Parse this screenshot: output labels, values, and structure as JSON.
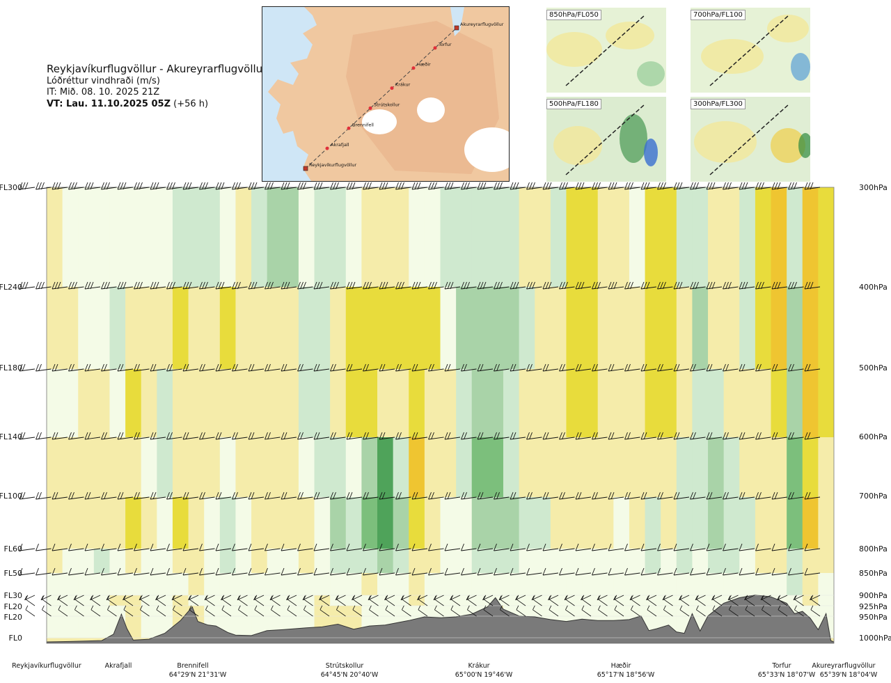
{
  "header": {
    "route": "Reykjavíkurflugvöllur - Akureyrarflugvöllur",
    "variable": "Lóðréttur vindhraði (m/s)",
    "issue_time": "IT: Mið. 08. 10. 2025 21Z",
    "valid_time": "VT: Lau. 11.10.2025 05Z",
    "valid_offset": "(+56 h)"
  },
  "route_map": {
    "points": [
      "Akureyrarflugvöllur",
      "Torfur",
      "Hæðir",
      "Krákur",
      "Strútskollur",
      "Brennifell",
      "Akrafjall",
      "Reykjavíkurflugvöllur"
    ]
  },
  "mini_maps": [
    {
      "label": "850hPa/FL050"
    },
    {
      "label": "700hPa/FL100"
    },
    {
      "label": "500hPa/FL180"
    },
    {
      "label": "300hPa/FL300"
    }
  ],
  "chart_data": {
    "type": "heatmap",
    "title": "Lóðréttur vindhraði (m/s)",
    "x_range": [
      0,
      100
    ],
    "flight_levels": [
      {
        "fl": "FL300",
        "hpa": "300hPa"
      },
      {
        "fl": "FL240",
        "hpa": "400hPa"
      },
      {
        "fl": "FL180",
        "hpa": "500hPa"
      },
      {
        "fl": "FL140",
        "hpa": "600hPa"
      },
      {
        "fl": "FL100",
        "hpa": "700hPa"
      },
      {
        "fl": "FL60",
        "hpa": "800hPa"
      },
      {
        "fl": "FL50",
        "hpa": "850hPa"
      },
      {
        "fl": "FL30",
        "hpa": "900hPa"
      },
      {
        "fl": "FL20",
        "hpa": "925hPa"
      },
      {
        "fl": "FL20",
        "hpa": "950hPa"
      },
      {
        "fl": "FL0",
        "hpa": "1000hPa"
      }
    ],
    "locations": [
      {
        "name": "Reykjavíkurflugvöllur",
        "coord": "",
        "x": 0
      },
      {
        "name": "Akrafjall",
        "coord": "",
        "x": 9.3
      },
      {
        "name": "Brennifell",
        "coord": "64°29'N 21°31'W",
        "x": 18.7
      },
      {
        "name": "Strútskollur",
        "coord": "64°45'N 20°40'W",
        "x": 38.3
      },
      {
        "name": "Krákur",
        "coord": "65°00'N 19°46'W",
        "x": 57.2
      },
      {
        "name": "Hæðir",
        "coord": "65°17'N 18°56'W",
        "x": 75.4
      },
      {
        "name": "Torfur",
        "coord": "65°33'N 18°07'W",
        "x": 95.4
      },
      {
        "name": "Akureyrarflugvöllur",
        "coord": "65°39'N 18°04'W",
        "x": 100
      }
    ],
    "columns": [
      {
        "x": 1,
        "v": [
          0.2,
          0.3,
          0.1,
          0.4,
          0.2,
          0.2,
          0.1,
          0.1,
          0.1,
          0.1
        ]
      },
      {
        "x": 3,
        "v": [
          0.1,
          0.2,
          0.1,
          0.3,
          0.2,
          0.1,
          0.1,
          0.1,
          0.1,
          0.1
        ]
      },
      {
        "x": 5,
        "v": [
          0.1,
          0.1,
          0.2,
          0.3,
          0.3,
          -0.1,
          0.1,
          0.1,
          0.1,
          0.1
        ]
      },
      {
        "x": 7,
        "v": [
          0.1,
          -0.1,
          0.2,
          0.2,
          0.3,
          -0.2,
          0.1,
          0.1,
          0.1,
          0.1
        ]
      },
      {
        "x": 9,
        "v": [
          -0.1,
          -0.3,
          0.1,
          0.2,
          0.4,
          -0.1,
          0.1,
          0.2,
          0.1,
          0.1
        ]
      },
      {
        "x": 11,
        "v": [
          0.1,
          0.2,
          0.7,
          0.4,
          0.8,
          0.3,
          0.1,
          0.2,
          0.2,
          0.2
        ]
      },
      {
        "x": 13,
        "v": [
          0.1,
          0.3,
          0.3,
          -0.1,
          0.2,
          0.1,
          0.1,
          0.1,
          0.1,
          0.1
        ]
      },
      {
        "x": 15,
        "v": [
          0.1,
          0.2,
          -0.2,
          -0.3,
          -0.1,
          -0.1,
          0.1,
          -0.1,
          0.1,
          0.1
        ]
      },
      {
        "x": 17,
        "v": [
          -0.2,
          0.7,
          0.4,
          0.2,
          0.8,
          0.6,
          0.1,
          0.2,
          0.3,
          0.3
        ]
      },
      {
        "x": 19,
        "v": [
          -0.3,
          0.4,
          0.3,
          0.5,
          0.4,
          0.4,
          0.2,
          0.1,
          0.2,
          0.2
        ]
      },
      {
        "x": 21,
        "v": [
          -0.3,
          0.2,
          0.2,
          0.3,
          0.1,
          0.1,
          0.1,
          0.1,
          0.1,
          0.1
        ]
      },
      {
        "x": 23,
        "v": [
          0.1,
          0.8,
          0.2,
          -0.1,
          -0.3,
          -0.2,
          0.1,
          -0.1,
          0.1,
          0.1
        ]
      },
      {
        "x": 25,
        "v": [
          0.2,
          0.5,
          0.3,
          0.3,
          0.1,
          0.1,
          0.1,
          0.1,
          0.1,
          0.1
        ]
      },
      {
        "x": 27,
        "v": [
          -0.2,
          0.3,
          0.4,
          0.4,
          0.3,
          0.2,
          0.1,
          0.1,
          0.1,
          0.1
        ]
      },
      {
        "x": 29,
        "v": [
          -0.4,
          0.2,
          0.3,
          0.3,
          0.2,
          0.1,
          0.1,
          0.1,
          0.1,
          0.1
        ]
      },
      {
        "x": 31,
        "v": [
          -0.5,
          0.3,
          0.2,
          0.2,
          0.2,
          0.1,
          0.1,
          0.1,
          0.1,
          0.1
        ]
      },
      {
        "x": 33,
        "v": [
          -0.1,
          -0.2,
          -0.2,
          0.1,
          0.3,
          0.2,
          0.1,
          0.1,
          0.1,
          0.1
        ]
      },
      {
        "x": 35,
        "v": [
          -0.2,
          -0.3,
          -0.3,
          -0.2,
          -0.1,
          0.1,
          0.1,
          0.2,
          0.2,
          0.2
        ]
      },
      {
        "x": 37,
        "v": [
          -0.2,
          0.6,
          0.4,
          -0.2,
          -0.4,
          -0.2,
          0.1,
          0.1,
          0.2,
          0.2
        ]
      },
      {
        "x": 39,
        "v": [
          -0.1,
          0.9,
          0.8,
          -0.1,
          -0.3,
          -0.2,
          0.1,
          0.1,
          0.2,
          0.2
        ]
      },
      {
        "x": 41,
        "v": [
          0.2,
          0.8,
          0.7,
          -0.5,
          -0.6,
          -0.3,
          0.2,
          0.1,
          0.1,
          0.1
        ]
      },
      {
        "x": 43,
        "v": [
          0.3,
          0.9,
          0.6,
          -1.0,
          -1.0,
          -0.4,
          -0.1,
          -0.1,
          0.1,
          0.1
        ]
      },
      {
        "x": 45,
        "v": [
          0.2,
          0.8,
          0.6,
          -0.3,
          -0.4,
          -0.2,
          0.1,
          0.1,
          0.1,
          0.1
        ]
      },
      {
        "x": 47,
        "v": [
          0.1,
          0.9,
          1.0,
          1.2,
          0.7,
          0.3,
          0.2,
          0.2,
          0.1,
          0.1
        ]
      },
      {
        "x": 49,
        "v": [
          -0.1,
          0.8,
          0.5,
          0.5,
          0.4,
          0.2,
          0.1,
          0.1,
          0.1,
          0.1
        ]
      },
      {
        "x": 51,
        "v": [
          -0.2,
          -0.1,
          0.3,
          0.3,
          -0.1,
          -0.1,
          0.1,
          0.1,
          0.1,
          0.1
        ]
      },
      {
        "x": 53,
        "v": [
          -0.3,
          -0.4,
          -0.3,
          -0.2,
          -0.1,
          -0.1,
          0.1,
          -0.1,
          0.1,
          0.1
        ]
      },
      {
        "x": 55,
        "v": [
          -0.3,
          -0.5,
          -0.5,
          -0.6,
          -0.4,
          -0.2,
          0.1,
          -0.1,
          0.1,
          0.1
        ]
      },
      {
        "x": 57,
        "v": [
          -0.3,
          -0.5,
          -0.4,
          -0.6,
          -0.5,
          -0.2,
          0.1,
          0.1,
          0.2,
          0.2
        ]
      },
      {
        "x": 59,
        "v": [
          -0.2,
          -0.4,
          -0.3,
          -0.3,
          -0.4,
          -0.2,
          0.1,
          0.1,
          0.1,
          0.1
        ]
      },
      {
        "x": 61,
        "v": [
          0.2,
          -0.2,
          0.2,
          0.2,
          -0.3,
          -0.1,
          0.1,
          0.1,
          0.1,
          0.1
        ]
      },
      {
        "x": 63,
        "v": [
          0.3,
          0.2,
          0.4,
          0.3,
          -0.2,
          -0.1,
          0.1,
          0.1,
          0.1,
          0.1
        ]
      },
      {
        "x": 65,
        "v": [
          -0.2,
          0.3,
          0.4,
          0.3,
          0.2,
          0.1,
          0.1,
          0.1,
          0.1,
          0.1
        ]
      },
      {
        "x": 67,
        "v": [
          0.7,
          0.8,
          0.8,
          0.4,
          0.3,
          -0.1,
          0.1,
          -0.1,
          0.1,
          0.1
        ]
      },
      {
        "x": 69,
        "v": [
          0.8,
          0.9,
          0.9,
          0.4,
          0.3,
          0.1,
          0.1,
          0.1,
          0.1,
          0.1
        ]
      },
      {
        "x": 71,
        "v": [
          0.3,
          0.4,
          0.5,
          0.3,
          0.3,
          -0.1,
          0.1,
          0.1,
          0.1,
          0.1
        ]
      },
      {
        "x": 73,
        "v": [
          0.2,
          0.3,
          0.3,
          0.2,
          0.1,
          0.1,
          0.1,
          0.1,
          0.1,
          0.1
        ]
      },
      {
        "x": 75,
        "v": [
          0.1,
          0.2,
          0.4,
          0.3,
          0.2,
          0.1,
          0.1,
          0.1,
          0.1,
          0.1
        ]
      },
      {
        "x": 77,
        "v": [
          0.9,
          1.0,
          0.8,
          0.3,
          -0.2,
          -0.2,
          0.1,
          0.1,
          0.1,
          0.1
        ]
      },
      {
        "x": 79,
        "v": [
          0.8,
          0.9,
          0.7,
          0.4,
          0.3,
          0.1,
          0.1,
          0.1,
          0.1,
          0.1
        ]
      },
      {
        "x": 81,
        "v": [
          -0.2,
          0.2,
          0.2,
          -0.2,
          -0.3,
          -0.2,
          0.1,
          0.1,
          0.1,
          0.1
        ]
      },
      {
        "x": 83,
        "v": [
          -0.3,
          -0.4,
          -0.3,
          -0.2,
          -0.2,
          -0.1,
          0.1,
          0.1,
          0.1,
          0.1
        ]
      },
      {
        "x": 85,
        "v": [
          0.2,
          0.3,
          -0.3,
          -0.5,
          -0.5,
          -0.3,
          -0.1,
          -0.1,
          0.1,
          0.1
        ]
      },
      {
        "x": 87,
        "v": [
          0.3,
          0.3,
          0.3,
          -0.2,
          -0.3,
          -0.2,
          0.1,
          0.1,
          0.1,
          0.1
        ]
      },
      {
        "x": 89,
        "v": [
          -0.2,
          -0.2,
          0.2,
          0.2,
          -0.2,
          -0.1,
          0.1,
          0.1,
          0.1,
          0.1
        ]
      },
      {
        "x": 91,
        "v": [
          1.0,
          0.9,
          0.5,
          0.3,
          0.3,
          0.2,
          0.1,
          0.1,
          0.1,
          0.1
        ]
      },
      {
        "x": 93,
        "v": [
          1.3,
          1.2,
          0.8,
          0.5,
          0.3,
          0.2,
          0.1,
          0.1,
          0.1,
          0.1
        ]
      },
      {
        "x": 95,
        "v": [
          -0.3,
          -0.4,
          -0.5,
          -0.8,
          -0.6,
          -0.3,
          -0.2,
          -0.1,
          0.1,
          0.1
        ]
      },
      {
        "x": 97,
        "v": [
          1.2,
          1.3,
          1.1,
          1.0,
          1.2,
          0.6,
          0.2,
          0.2,
          0.1,
          0.1
        ]
      },
      {
        "x": 99,
        "v": [
          0.8,
          0.9,
          0.7,
          0.4,
          0.6,
          0.3,
          0.1,
          0.1,
          0.1,
          0.1
        ]
      }
    ],
    "terrain": [
      [
        0,
        0.3
      ],
      [
        3,
        0.4
      ],
      [
        7,
        0.6
      ],
      [
        8.5,
        2.0
      ],
      [
        9.5,
        6.4
      ],
      [
        10.2,
        3.2
      ],
      [
        11,
        0.7
      ],
      [
        13,
        0.9
      ],
      [
        15,
        2.2
      ],
      [
        17,
        5.0
      ],
      [
        18.5,
        8.0
      ],
      [
        19.2,
        4.8
      ],
      [
        20.5,
        4.0
      ],
      [
        21.5,
        3.8
      ],
      [
        23,
        2.4
      ],
      [
        24,
        1.8
      ],
      [
        26,
        1.7
      ],
      [
        28,
        2.8
      ],
      [
        30,
        3.0
      ],
      [
        33,
        3.4
      ],
      [
        35,
        3.6
      ],
      [
        37,
        4.2
      ],
      [
        39,
        3.1
      ],
      [
        41,
        3.8
      ],
      [
        43,
        4.0
      ],
      [
        44.5,
        4.5
      ],
      [
        46,
        5.0
      ],
      [
        48,
        5.8
      ],
      [
        50,
        5.6
      ],
      [
        52,
        5.8
      ],
      [
        54,
        6.4
      ],
      [
        56,
        8.0
      ],
      [
        57,
        10.0
      ],
      [
        58,
        7.5
      ],
      [
        60,
        6.0
      ],
      [
        62,
        5.8
      ],
      [
        64,
        5.2
      ],
      [
        66,
        4.8
      ],
      [
        68,
        5.3
      ],
      [
        70,
        5.0
      ],
      [
        72,
        5.0
      ],
      [
        74,
        5.2
      ],
      [
        75.5,
        6.0
      ],
      [
        76.5,
        2.8
      ],
      [
        77.5,
        3.2
      ],
      [
        79,
        4.0
      ],
      [
        80,
        2.5
      ],
      [
        81,
        2.2
      ],
      [
        82,
        6.5
      ],
      [
        83,
        2.7
      ],
      [
        84,
        6.0
      ],
      [
        86,
        8.8
      ],
      [
        88,
        10.0
      ],
      [
        90,
        10.6
      ],
      [
        92,
        10.2
      ],
      [
        94,
        8.8
      ],
      [
        95,
        6.5
      ],
      [
        96,
        7.0
      ],
      [
        97,
        5.5
      ],
      [
        98,
        3.0
      ],
      [
        99,
        6.5
      ],
      [
        99.6,
        0.6
      ],
      [
        100,
        0.3
      ]
    ],
    "terrain_unit": "percent of plot height",
    "color_legend": "green = downward, yellow = upward vertical wind"
  }
}
